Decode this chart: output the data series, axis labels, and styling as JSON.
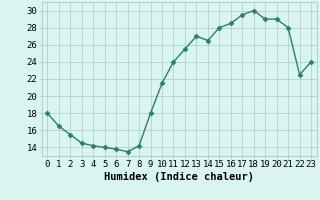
{
  "x": [
    0,
    1,
    2,
    3,
    4,
    5,
    6,
    7,
    8,
    9,
    10,
    11,
    12,
    13,
    14,
    15,
    16,
    17,
    18,
    19,
    20,
    21,
    22,
    23
  ],
  "y": [
    18.0,
    16.5,
    15.5,
    14.5,
    14.2,
    14.0,
    13.8,
    13.5,
    14.2,
    18.0,
    21.5,
    24.0,
    25.5,
    27.0,
    26.5,
    28.0,
    28.5,
    29.5,
    30.0,
    29.0,
    29.0,
    28.0,
    22.5,
    24.0
  ],
  "line_color": "#2e7d6b",
  "marker": "D",
  "marker_size": 2.5,
  "bg_color": "#d8f5f0",
  "grid_color": "#b0c8c4",
  "xlabel": "Humidex (Indice chaleur)",
  "tick_fontsize": 6.5,
  "xlabel_fontsize": 7.5,
  "ylim": [
    13,
    31
  ],
  "yticks": [
    14,
    16,
    18,
    20,
    22,
    24,
    26,
    28,
    30
  ],
  "xlim": [
    -0.5,
    23.5
  ],
  "xticks": [
    0,
    1,
    2,
    3,
    4,
    5,
    6,
    7,
    8,
    9,
    10,
    11,
    12,
    13,
    14,
    15,
    16,
    17,
    18,
    19,
    20,
    21,
    22,
    23
  ]
}
